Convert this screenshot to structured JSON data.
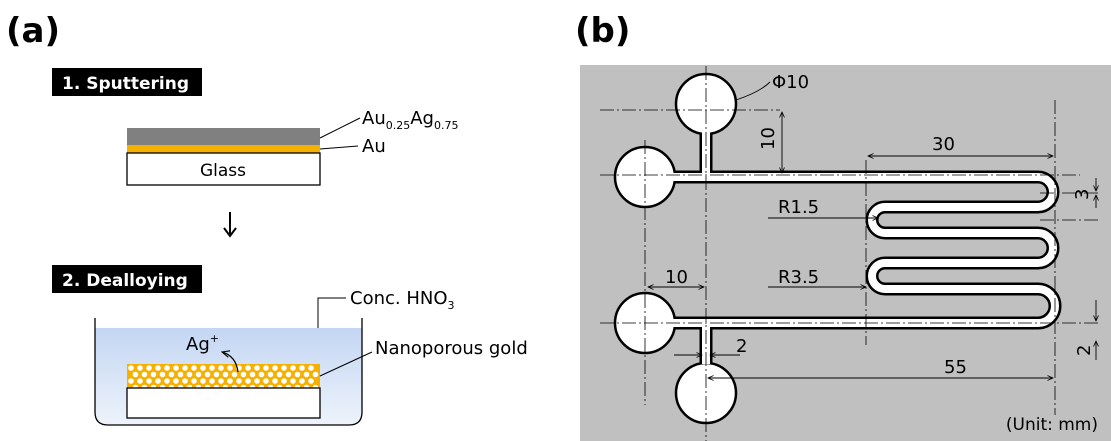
{
  "panel_a": {
    "label": "(a)",
    "step1": "1. Sputtering",
    "step2": "2. Dealloying",
    "glass": "Glass",
    "au": "Au",
    "alloy": {
      "au": "Au",
      "au_sub": "0.25",
      "ag": "Ag",
      "ag_sub": "0.75"
    },
    "acid": {
      "main": "Conc. HNO",
      "sub": "3"
    },
    "ion": {
      "main": "Ag",
      "sup": "+"
    },
    "npg": "Nanoporous gold",
    "arrow": "↓",
    "colors": {
      "alloy": "#808080",
      "gold": "#f5b000",
      "liquid_top": "#c7d8f2",
      "liquid_bottom": "#e8eef8"
    }
  },
  "panel_b": {
    "label": "(b)",
    "phi": "Φ10",
    "dim_10_top": "10",
    "dim_30": "30",
    "dim_3": "3",
    "r15": "R1.5",
    "dim_10_left": "10",
    "r35": "R3.5",
    "dim_2_a": "2",
    "dim_55": "55",
    "dim_2_b": "2",
    "unit": "(Unit: mm)",
    "colors": {
      "background": "#c0c0c0"
    }
  }
}
